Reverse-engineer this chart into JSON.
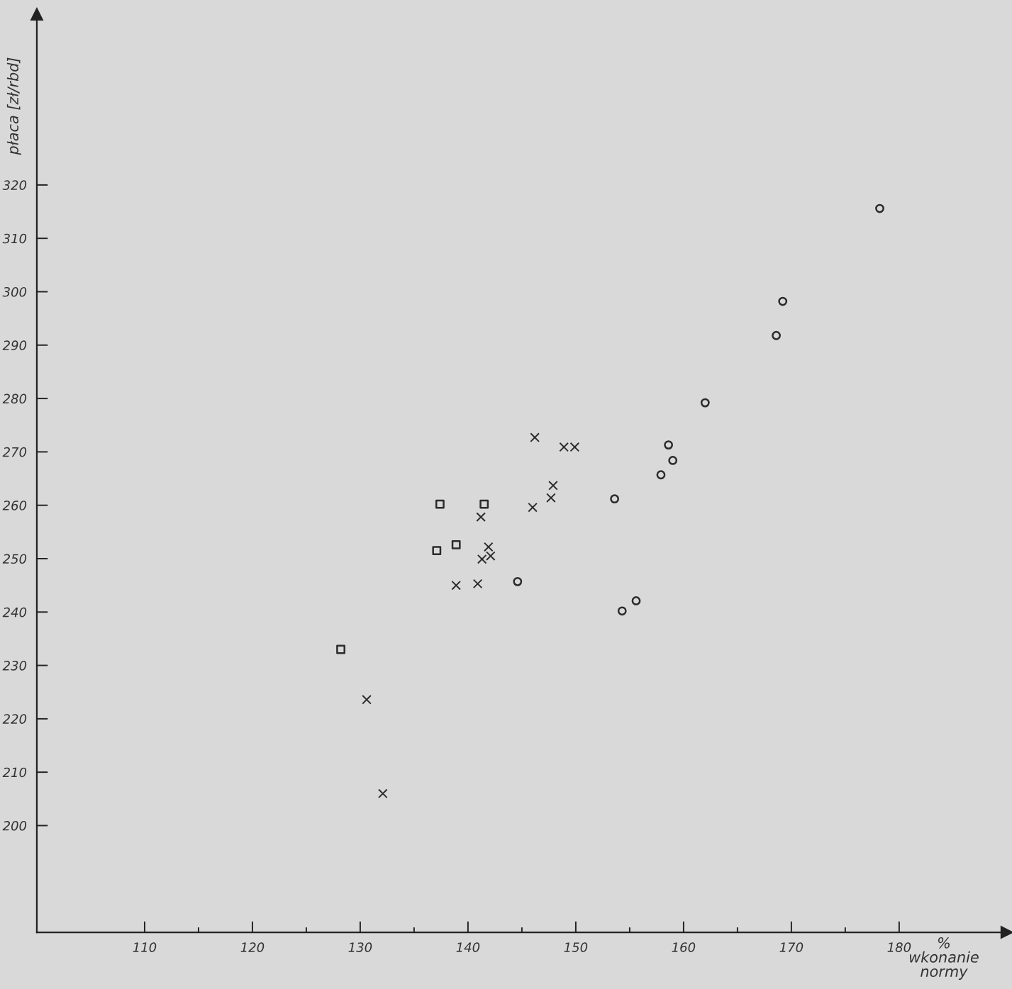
{
  "chart_data": {
    "type": "scatter",
    "xlabel": "%\nwkonanie\nnormy",
    "ylabel": "płaca [zł/rbd]",
    "xlim": [
      100,
      190
    ],
    "ylim": [
      180,
      352
    ],
    "xticks": [
      110,
      {
        "value": 115,
        "label": null
      },
      120,
      {
        "value": 125,
        "label": null
      },
      130,
      {
        "value": 135,
        "label": null
      },
      140,
      {
        "value": 145,
        "label": null
      },
      150,
      {
        "value": 155,
        "label": null
      },
      160,
      {
        "value": 165,
        "label": null
      },
      170,
      {
        "value": 175,
        "label": null
      },
      180
    ],
    "yticks": [
      200,
      210,
      220,
      230,
      240,
      250,
      260,
      270,
      280,
      290,
      300,
      310,
      320
    ],
    "grid": false,
    "series": [
      {
        "marker": "square",
        "color": "#2b2b2b",
        "x": [
          128.2,
          137.1,
          137.4,
          138.9,
          141.5
        ],
        "values": [
          233.0,
          251.5,
          260.2,
          252.6,
          260.2
        ]
      },
      {
        "marker": "cross",
        "color": "#2b2b2b",
        "x": [
          130.6,
          132.1,
          138.9,
          140.9,
          141.2,
          141.3,
          141.9,
          142.1,
          146.0,
          146.2,
          147.7,
          147.9,
          148.9,
          149.9
        ],
        "values": [
          223.6,
          206.0,
          245.0,
          245.3,
          257.8,
          249.9,
          252.2,
          250.5,
          259.6,
          272.7,
          261.4,
          263.7,
          270.9,
          270.9
        ]
      },
      {
        "marker": "circle",
        "color": "#2b2b2b",
        "x": [
          144.6,
          154.3,
          155.6,
          153.6,
          157.9,
          158.6,
          159.0,
          162.0,
          168.6,
          169.2,
          178.2
        ],
        "values": [
          245.7,
          240.2,
          242.1,
          261.2,
          265.7,
          271.3,
          268.4,
          279.2,
          291.8,
          298.2,
          315.6
        ]
      }
    ]
  }
}
